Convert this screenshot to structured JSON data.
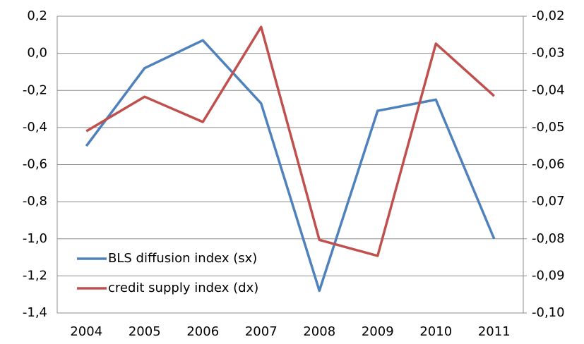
{
  "chart_data": {
    "type": "line",
    "categories": [
      "2004",
      "2005",
      "2006",
      "2007",
      "2008",
      "2009",
      "2010",
      "2011"
    ],
    "series": [
      {
        "name": "BLS diffusion index (sx)",
        "color": "#4f81bd",
        "values": [
          -0.5,
          -0.08,
          0.07,
          -0.27,
          -1.28,
          -0.31,
          -0.25,
          -1.0
        ]
      },
      {
        "name": "credit supply index (dx)",
        "color": "#c0504d",
        "axis": "y2",
        "values": [
          -0.051,
          -0.0417,
          -0.0485,
          -0.0229,
          -0.0803,
          -0.0846,
          -0.0274,
          -0.0415
        ]
      }
    ],
    "ylim": [
      -1.4,
      0.2
    ],
    "yticks": [
      {
        "value": -1.4,
        "label": "-1,4"
      },
      {
        "value": -1.2,
        "label": "-1,2"
      },
      {
        "value": -1.0,
        "label": "-1,0"
      },
      {
        "value": -0.8,
        "label": "-0,8"
      },
      {
        "value": -0.6,
        "label": "-0,6"
      },
      {
        "value": -0.4,
        "label": "-0,4"
      },
      {
        "value": -0.2,
        "label": "-0,2"
      },
      {
        "value": 0,
        "label": "0,0"
      },
      {
        "value": 0.2,
        "label": "0,2"
      }
    ],
    "y2lim": [
      -0.1,
      -0.02
    ],
    "y2ticks": [
      {
        "value": -0.1,
        "label": "-0,10"
      },
      {
        "value": -0.09,
        "label": "-0,09"
      },
      {
        "value": -0.08,
        "label": "-0,08"
      },
      {
        "value": -0.07,
        "label": "-0,07"
      },
      {
        "value": -0.06,
        "label": "-0,06"
      },
      {
        "value": -0.05,
        "label": "-0,05"
      },
      {
        "value": -0.04,
        "label": "-0,04"
      },
      {
        "value": -0.03,
        "label": "-0,03"
      },
      {
        "value": -0.02,
        "label": "-0,02"
      }
    ],
    "grid": true,
    "legend": "lower left"
  }
}
